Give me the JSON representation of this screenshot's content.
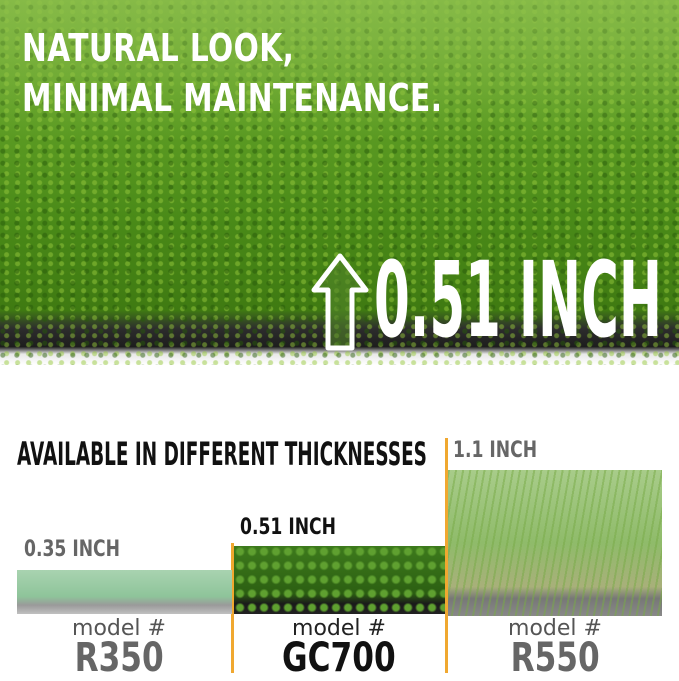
{
  "hero": {
    "headline_lines": [
      "NATURAL LOOK,",
      "MINIMAL MAINTENANCE."
    ],
    "thickness": "0.51 INCH",
    "icon": "arrow-up-icon"
  },
  "comparison": {
    "heading": "AVAILABLE IN DIFFERENT THICKNESSES",
    "accent_color": "#f0a830",
    "models": [
      {
        "thickness": "0.35 INCH",
        "model_label": "model #",
        "code": "R350"
      },
      {
        "thickness": "0.51 INCH",
        "model_label": "model #",
        "code": "GC700"
      },
      {
        "thickness": "1.1 INCH",
        "model_label": "model #",
        "code": "R550"
      }
    ]
  }
}
